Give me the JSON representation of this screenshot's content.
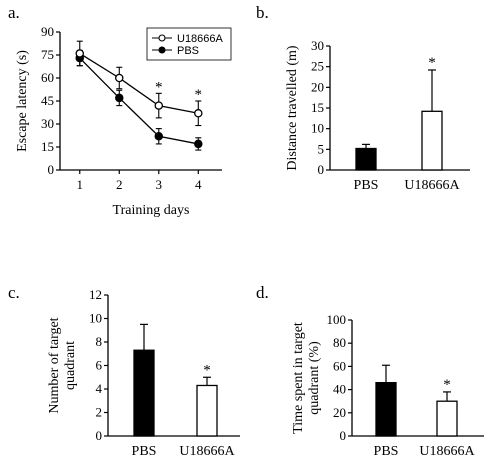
{
  "chart_data": [
    {
      "panel": "a.",
      "type": "line",
      "x": [
        1,
        2,
        3,
        4
      ],
      "xlabel": "Training days",
      "ylabel": "Escape latency (s)",
      "ylim": [
        0,
        90
      ],
      "yticks": [
        0,
        15,
        30,
        45,
        60,
        75,
        90
      ],
      "xticks": [
        "1",
        "2",
        "3",
        "4"
      ],
      "legend": "top-right",
      "series": [
        {
          "name": "U18666A",
          "marker": "open-circle",
          "values": [
            76,
            60,
            42,
            37
          ],
          "errors": [
            8,
            7,
            8,
            8
          ]
        },
        {
          "name": "PBS",
          "marker": "filled-circle",
          "values": [
            73,
            47,
            22,
            17
          ],
          "errors": [
            5,
            5,
            5,
            4
          ]
        }
      ],
      "significance": [
        {
          "x": 3,
          "label": "*"
        },
        {
          "x": 4,
          "label": "*"
        }
      ]
    },
    {
      "panel": "b.",
      "type": "bar",
      "categories": [
        "PBS",
        "U18666A"
      ],
      "values": [
        5.2,
        14.2
      ],
      "errors": [
        1.0,
        10.0
      ],
      "fills": [
        "#000000",
        "#ffffff"
      ],
      "ylabel": "Distance travelled (m)",
      "ylim": [
        0,
        30
      ],
      "yticks": [
        0,
        5,
        10,
        15,
        20,
        25,
        30
      ],
      "significance": [
        {
          "category": "U18666A",
          "label": "*"
        }
      ]
    },
    {
      "panel": "c.",
      "type": "bar",
      "categories": [
        "PBS",
        "U18666A"
      ],
      "values": [
        7.3,
        4.3
      ],
      "errors": [
        2.2,
        0.7
      ],
      "fills": [
        "#000000",
        "#ffffff"
      ],
      "ylabel_lines": [
        "Number of target",
        "quadrant"
      ],
      "ylim": [
        0,
        12
      ],
      "yticks": [
        0,
        2,
        4,
        6,
        8,
        10,
        12
      ],
      "significance": [
        {
          "category": "U18666A",
          "label": "*"
        }
      ]
    },
    {
      "panel": "d.",
      "type": "bar",
      "categories": [
        "PBS",
        "U18666A"
      ],
      "values": [
        46,
        30
      ],
      "errors": [
        15,
        8
      ],
      "fills": [
        "#000000",
        "#ffffff"
      ],
      "ylabel_lines": [
        "Time spent in target",
        "quadrant (%)"
      ],
      "ylim": [
        0,
        100
      ],
      "yticks": [
        0,
        20,
        40,
        60,
        80,
        100
      ],
      "significance": [
        {
          "category": "U18666A",
          "label": "*"
        }
      ]
    }
  ]
}
